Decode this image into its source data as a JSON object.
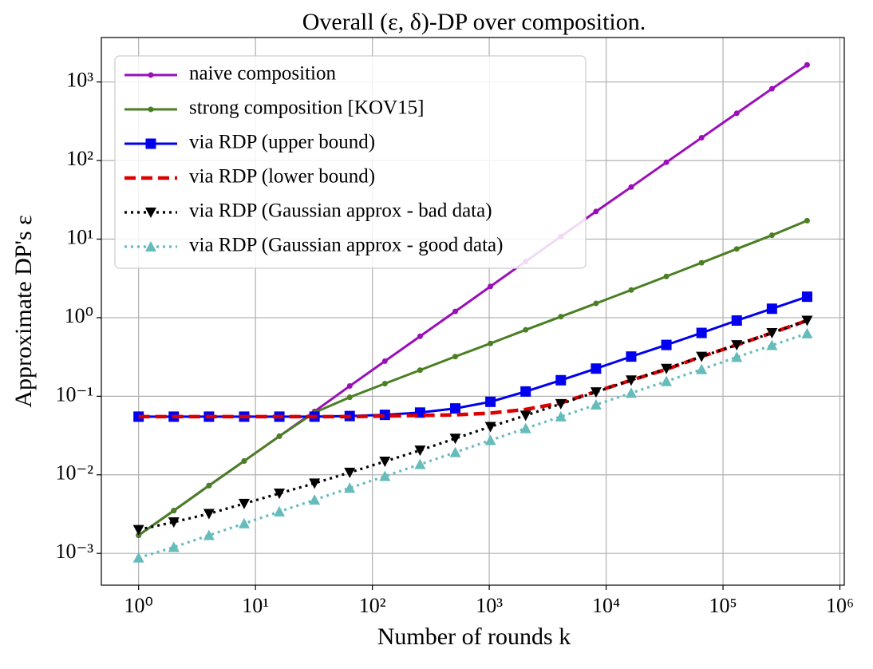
{
  "chart_data": {
    "type": "line",
    "title": "Overall (ε, δ)-DP over composition.",
    "x_label": "Number of rounds k",
    "y_label": "Approximate DP's ε",
    "xscale": "log",
    "yscale": "log",
    "grid": true,
    "legend": "upper left",
    "x": [
      1,
      2,
      4,
      8,
      16,
      32,
      64,
      128,
      256,
      512,
      1024,
      2048,
      4096,
      8192,
      16384,
      32768,
      65536,
      131072,
      262144,
      524288
    ],
    "xlim": [
      0.48,
      1090000
    ],
    "ylim": [
      0.000394,
      3680
    ],
    "xticks": [
      {
        "value": 1,
        "label": "10⁰"
      },
      {
        "value": 10,
        "label": "10¹"
      },
      {
        "value": 100,
        "label": "10²"
      },
      {
        "value": 1000,
        "label": "10³"
      },
      {
        "value": 10000,
        "label": "10⁴"
      },
      {
        "value": 100000,
        "label": "10⁵"
      },
      {
        "value": 1000000,
        "label": "10⁶"
      }
    ],
    "yticks": [
      {
        "value": 0.001,
        "label": "10⁻³"
      },
      {
        "value": 0.01,
        "label": "10⁻²"
      },
      {
        "value": 0.1,
        "label": "10⁻¹"
      },
      {
        "value": 1,
        "label": "10⁰"
      },
      {
        "value": 10,
        "label": "10¹"
      },
      {
        "value": 100,
        "label": "10²"
      },
      {
        "value": 1000,
        "label": "10³"
      }
    ],
    "series": [
      {
        "name": "naive composition",
        "color": "#9b0fb8",
        "linestyle": "solid",
        "marker": "circle",
        "values": [
          0.0017,
          0.0035,
          0.0073,
          0.015,
          0.031,
          0.064,
          0.135,
          0.28,
          0.58,
          1.2,
          2.5,
          5.2,
          10.8,
          22.5,
          46,
          95,
          195,
          400,
          820,
          1650
        ]
      },
      {
        "name": "strong composition [KOV15]",
        "color": "#4a7f23",
        "linestyle": "solid",
        "marker": "circle",
        "values": [
          0.0017,
          0.0035,
          0.0073,
          0.015,
          0.031,
          0.062,
          0.097,
          0.145,
          0.215,
          0.32,
          0.47,
          0.7,
          1.03,
          1.52,
          2.25,
          3.35,
          5.0,
          7.5,
          11.2,
          17.2
        ]
      },
      {
        "name": "via RDP (upper bound)",
        "color": "#0000ee",
        "linestyle": "solid",
        "marker": "square",
        "values": [
          0.055,
          0.055,
          0.055,
          0.055,
          0.055,
          0.055,
          0.056,
          0.058,
          0.062,
          0.07,
          0.085,
          0.115,
          0.16,
          0.225,
          0.32,
          0.45,
          0.64,
          0.92,
          1.3,
          1.85
        ]
      },
      {
        "name": "via RDP (lower bound)",
        "color": "#dd0000",
        "linestyle": "dashed",
        "marker": "none",
        "values": [
          0.055,
          0.055,
          0.055,
          0.055,
          0.055,
          0.055,
          0.055,
          0.056,
          0.057,
          0.058,
          0.061,
          0.068,
          0.082,
          0.115,
          0.16,
          0.22,
          0.32,
          0.45,
          0.64,
          0.92
        ]
      },
      {
        "name": "via RDP (Gaussian approx - bad data)",
        "color": "#000000",
        "linestyle": "dotted",
        "marker": "triangle-down",
        "values": [
          0.002,
          0.0025,
          0.0032,
          0.0043,
          0.0058,
          0.0078,
          0.0107,
          0.0148,
          0.0205,
          0.029,
          0.041,
          0.057,
          0.08,
          0.113,
          0.16,
          0.225,
          0.32,
          0.45,
          0.64,
          0.92
        ]
      },
      {
        "name": "via RDP (Gaussian approx - good data)",
        "color": "#66bbbb",
        "linestyle": "dotted",
        "marker": "triangle-up",
        "values": [
          0.00088,
          0.0012,
          0.0017,
          0.0024,
          0.0034,
          0.0048,
          0.0068,
          0.0096,
          0.0136,
          0.0193,
          0.0275,
          0.039,
          0.055,
          0.078,
          0.11,
          0.155,
          0.22,
          0.315,
          0.445,
          0.63
        ]
      }
    ]
  }
}
